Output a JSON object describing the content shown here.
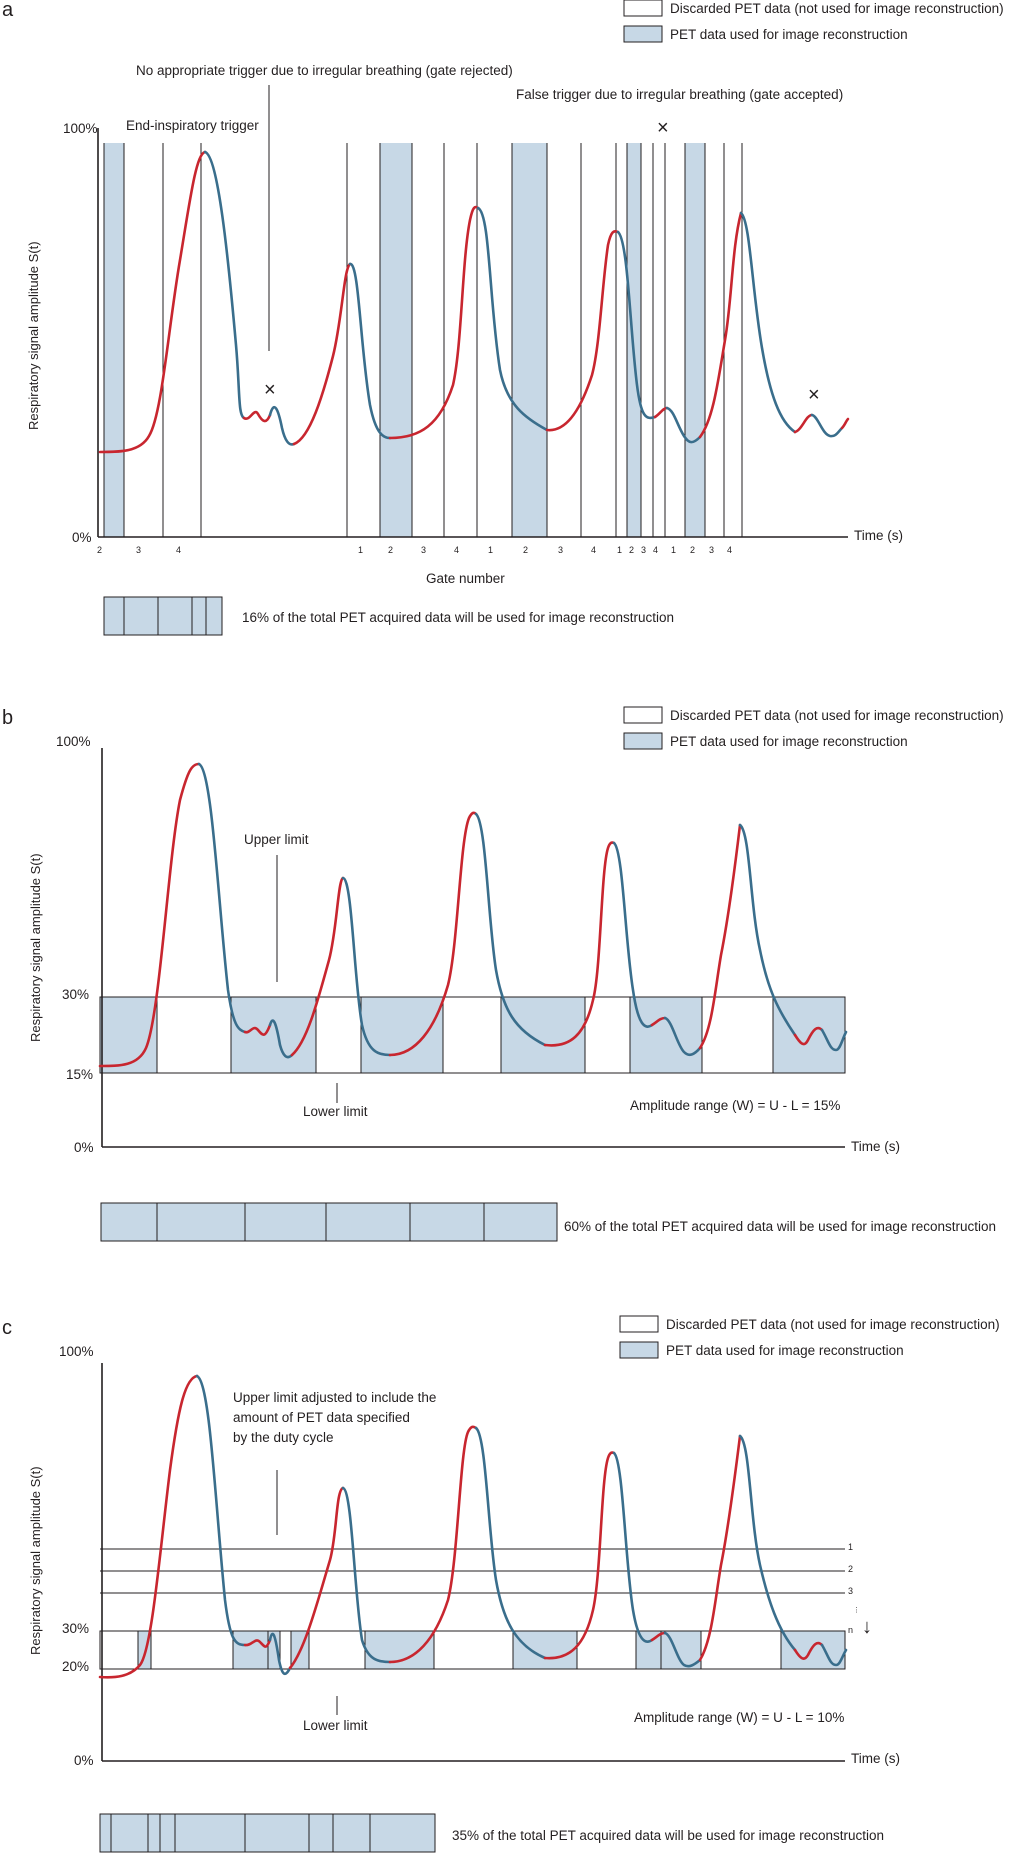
{
  "colors": {
    "used": "#c7d8e6",
    "red": "#c8262f",
    "blue": "#3a6e8c",
    "ink": "#231f20"
  },
  "legend": {
    "discarded": "Discarded PET data (not used for image reconstruction)",
    "used": "PET data used for image reconstruction"
  },
  "panel_a": {
    "label": "a",
    "y_top": "100%",
    "y_bottom": "0%",
    "y_axis_label": "Respiratory signal amplitude S(t)",
    "x_axis_label": "Time (s)",
    "gate_axis_label": "Gate number",
    "annotation_trigger": "End-inspiratory trigger",
    "annotation_rejected": "No appropriate trigger due to irregular breathing (gate rejected)",
    "annotation_false": "False trigger due to irregular breathing (gate accepted)",
    "reject_marker": "×",
    "gate_numbers": [
      "2",
      "3",
      "4",
      "1",
      "2",
      "3",
      "4",
      "1",
      "2",
      "3",
      "4",
      "1",
      "2",
      "3",
      "4",
      "1",
      "2",
      "3",
      "4"
    ],
    "summary": "16% of the total PET acquired data will be used for image reconstruction"
  },
  "panel_b": {
    "label": "b",
    "y_top": "100%",
    "y_upper": "30%",
    "y_lower": "15%",
    "y_bottom": "0%",
    "y_axis_label": "Respiratory signal amplitude S(t)",
    "x_axis_label": "Time (s)",
    "upper_label": "Upper limit",
    "lower_label": "Lower limit",
    "range_text": "Amplitude range (W) = U - L = 15%",
    "summary": "60% of the total PET acquired data will be used for image reconstruction"
  },
  "panel_c": {
    "label": "c",
    "y_top": "100%",
    "y_upper": "30%",
    "y_lower": "20%",
    "y_bottom": "0%",
    "y_axis_label": "Respiratory signal amplitude S(t)",
    "x_axis_label": "Time (s)",
    "upper_note_1": "Upper limit adjusted to include the",
    "upper_note_2": "amount of PET data specified",
    "upper_note_3": "by the duty cycle",
    "lower_label": "Lower limit",
    "range_text": "Amplitude range (W) = U - L = 10%",
    "level_labels": [
      "1",
      "2",
      "3",
      "⋮",
      "n"
    ],
    "arrow": "↓",
    "summary": "35% of the total PET acquired data will be used for image reconstruction"
  }
}
